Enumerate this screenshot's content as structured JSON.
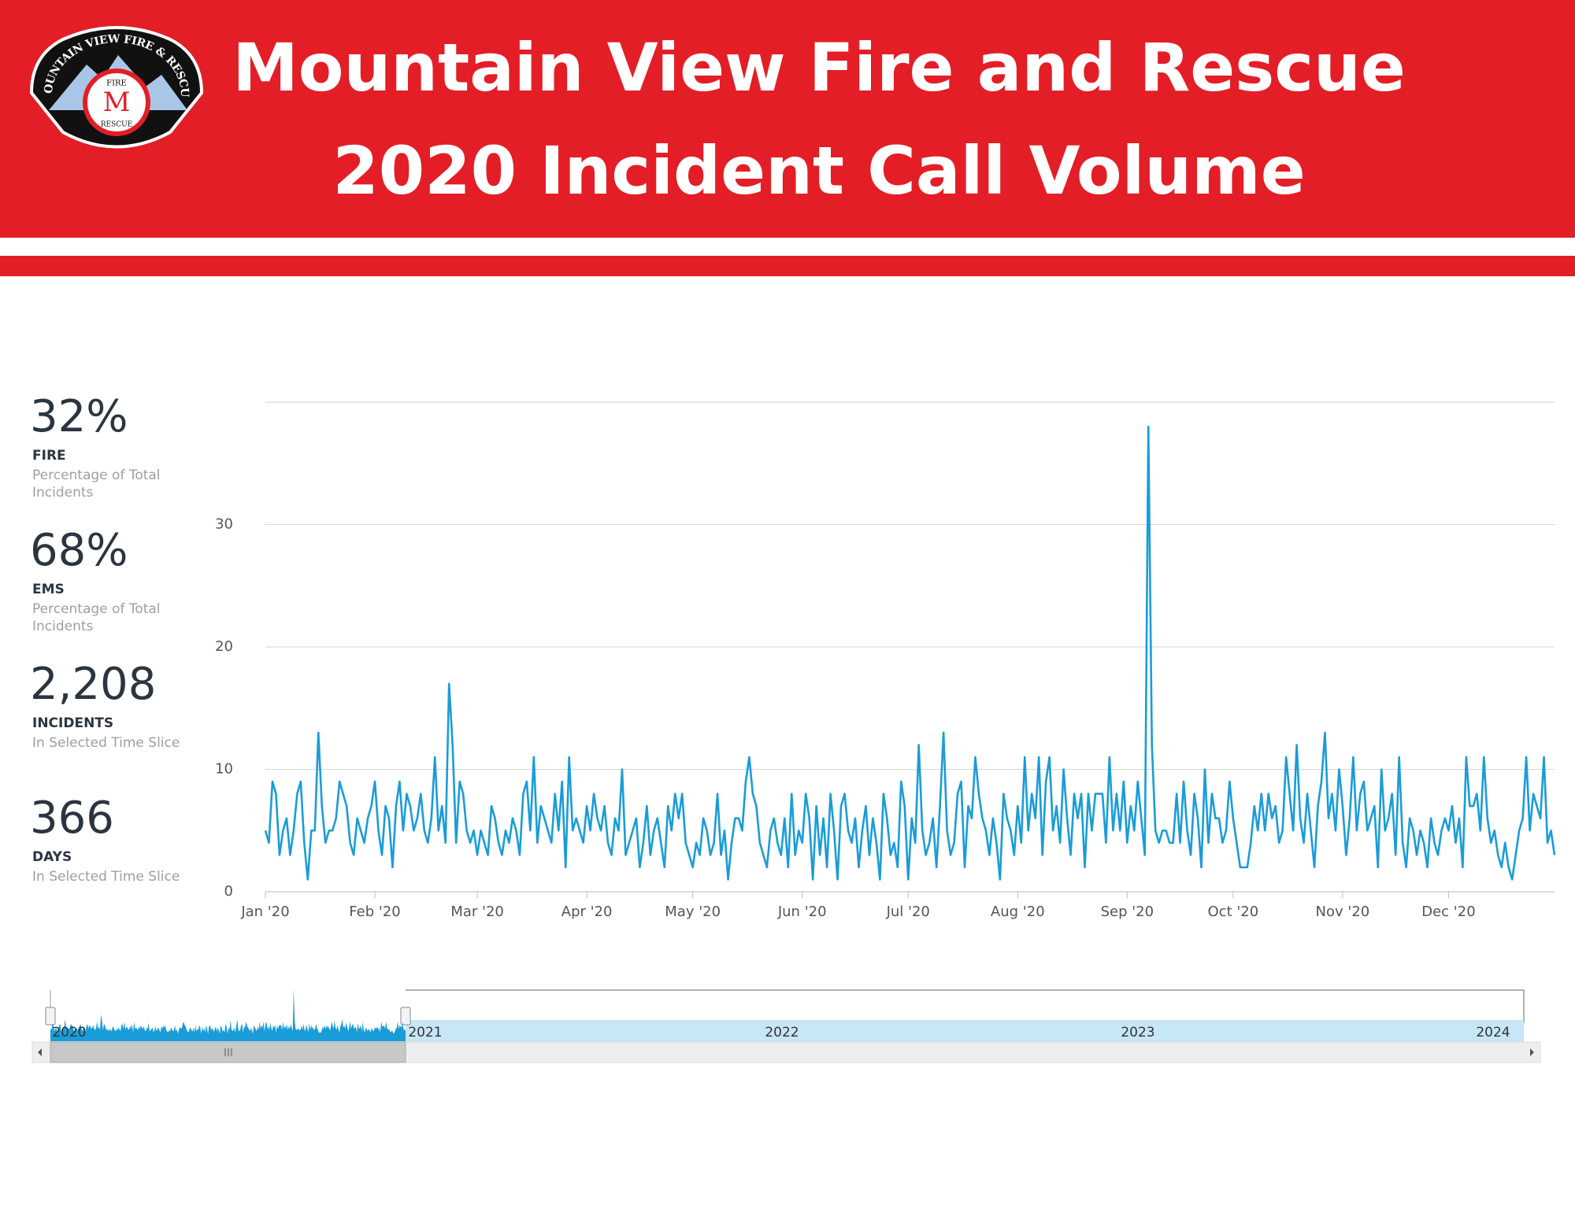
{
  "header": {
    "title_lines": [
      "Mountain View Fire and Rescue",
      "2020 Incident Call Volume"
    ]
  },
  "logo": {
    "ring_text": "MOUNTAIN VIEW FIRE & RESCUE",
    "top_text": "FIRE",
    "letter": "M",
    "bottom_text": "RESCUE"
  },
  "stats": [
    {
      "value": "32%",
      "label": "FIRE",
      "desc": [
        "Percentage of Total",
        "Incidents"
      ]
    },
    {
      "value": "68%",
      "label": "EMS",
      "desc": [
        "Percentage of Total",
        "Incidents"
      ]
    },
    {
      "value": "2,208",
      "label": "INCIDENTS",
      "desc": [
        "In Selected Time Slice"
      ]
    },
    {
      "value": "366",
      "label": "DAYS",
      "desc": [
        "In Selected Time Slice"
      ]
    }
  ],
  "chart_data": {
    "type": "line",
    "color": "#1a9cd8",
    "grid": true,
    "ylim": [
      0,
      40
    ],
    "yticks": [
      0,
      10,
      20,
      30
    ],
    "categories": [
      "Jan '20",
      null,
      null,
      null,
      null,
      null,
      null,
      null,
      null,
      null,
      null,
      null,
      null,
      null,
      null,
      null,
      null,
      null,
      null,
      null,
      null,
      null,
      null,
      null,
      null,
      null,
      null,
      null,
      null,
      null,
      null,
      "Feb '20",
      null,
      null,
      null,
      null,
      null,
      null,
      null,
      null,
      null,
      null,
      null,
      null,
      null,
      null,
      null,
      null,
      null,
      null,
      null,
      null,
      null,
      null,
      null,
      null,
      null,
      null,
      null,
      null,
      "Mar '20",
      null,
      null,
      null,
      null,
      null,
      null,
      null,
      null,
      null,
      null,
      null,
      null,
      null,
      null,
      null,
      null,
      null,
      null,
      null,
      null,
      null,
      null,
      null,
      null,
      null,
      null,
      null,
      null,
      null,
      null,
      "Apr '20",
      null,
      null,
      null,
      null,
      null,
      null,
      null,
      null,
      null,
      null,
      null,
      null,
      null,
      null,
      null,
      null,
      null,
      null,
      null,
      null,
      null,
      null,
      null,
      null,
      null,
      null,
      null,
      null,
      null,
      "May '20",
      null,
      null,
      null,
      null,
      null,
      null,
      null,
      null,
      null,
      null,
      null,
      null,
      null,
      null,
      null,
      null,
      null,
      null,
      null,
      null,
      null,
      null,
      null,
      null,
      null,
      null,
      null,
      null,
      null,
      null,
      "Jun '20",
      null,
      null,
      null,
      null,
      null,
      null,
      null,
      null,
      null,
      null,
      null,
      null,
      null,
      null,
      null,
      null,
      null,
      null,
      null,
      null,
      null,
      null,
      null,
      null,
      null,
      null,
      null,
      null,
      null,
      "Jul '20",
      null,
      null,
      null,
      null,
      null,
      null,
      null,
      null,
      null,
      null,
      null,
      null,
      null,
      null,
      null,
      null,
      null,
      null,
      null,
      null,
      null,
      null,
      null,
      null,
      null,
      null,
      null,
      null,
      null,
      null,
      "Aug '20",
      null,
      null,
      null,
      null,
      null,
      null,
      null,
      null,
      null,
      null,
      null,
      null,
      null,
      null,
      null,
      null,
      null,
      null,
      null,
      null,
      null,
      null,
      null,
      null,
      null,
      null,
      null,
      null,
      null,
      null,
      "Sep '20",
      null,
      null,
      null,
      null,
      null,
      null,
      null,
      null,
      null,
      null,
      null,
      null,
      null,
      null,
      null,
      null,
      null,
      null,
      null,
      null,
      null,
      null,
      null,
      null,
      null,
      null,
      null,
      null,
      null,
      "Oct '20",
      null,
      null,
      null,
      null,
      null,
      null,
      null,
      null,
      null,
      null,
      null,
      null,
      null,
      null,
      null,
      null,
      null,
      null,
      null,
      null,
      null,
      null,
      null,
      null,
      null,
      null,
      null,
      null,
      null,
      null,
      "Nov '20",
      null,
      null,
      null,
      null,
      null,
      null,
      null,
      null,
      null,
      null,
      null,
      null,
      null,
      null,
      null,
      null,
      null,
      null,
      null,
      null,
      null,
      null,
      null,
      null,
      null,
      null,
      null,
      null,
      null,
      "Dec '20",
      null,
      null,
      null,
      null,
      null,
      null,
      null,
      null,
      null,
      null,
      null,
      null,
      null,
      null,
      null,
      null,
      null,
      null,
      null,
      null,
      null,
      null,
      null,
      null,
      null,
      null,
      null,
      null,
      null,
      null
    ],
    "values": [
      5,
      4,
      9,
      8,
      3,
      5,
      6,
      3,
      5,
      8,
      9,
      4,
      1,
      5,
      5,
      13,
      7,
      4,
      5,
      5,
      6,
      9,
      8,
      7,
      4,
      3,
      6,
      5,
      4,
      6,
      7,
      9,
      5,
      3,
      7,
      6,
      2,
      7,
      9,
      5,
      8,
      7,
      5,
      6,
      8,
      5,
      4,
      6,
      11,
      5,
      7,
      4,
      17,
      12,
      4,
      9,
      8,
      5,
      4,
      5,
      3,
      5,
      4,
      3,
      7,
      6,
      4,
      3,
      5,
      4,
      6,
      5,
      3,
      8,
      9,
      5,
      11,
      4,
      7,
      6,
      5,
      4,
      8,
      5,
      9,
      2,
      11,
      5,
      6,
      5,
      4,
      7,
      5,
      8,
      6,
      5,
      7,
      4,
      3,
      6,
      5,
      10,
      3,
      4,
      5,
      6,
      2,
      4,
      7,
      3,
      5,
      6,
      4,
      2,
      7,
      5,
      8,
      6,
      8,
      4,
      3,
      2,
      4,
      3,
      6,
      5,
      3,
      4,
      8,
      3,
      5,
      1,
      4,
      6,
      6,
      5,
      9,
      11,
      8,
      7,
      4,
      3,
      2,
      5,
      6,
      4,
      3,
      6,
      2,
      8,
      3,
      5,
      4,
      8,
      6,
      1,
      7,
      3,
      6,
      2,
      8,
      5,
      1,
      7,
      8,
      5,
      4,
      6,
      2,
      5,
      7,
      3,
      6,
      4,
      1,
      8,
      6,
      3,
      4,
      2,
      9,
      7,
      1,
      6,
      4,
      12,
      5,
      3,
      4,
      6,
      2,
      7,
      13,
      5,
      3,
      4,
      8,
      9,
      2,
      7,
      6,
      11,
      8,
      6,
      5,
      3,
      6,
      4,
      1,
      8,
      6,
      5,
      3,
      7,
      4,
      11,
      5,
      8,
      6,
      11,
      3,
      9,
      11,
      5,
      7,
      4,
      10,
      6,
      3,
      8,
      6,
      8,
      2,
      8,
      5,
      8,
      8,
      8,
      4,
      11,
      5,
      8,
      5,
      9,
      4,
      7,
      5,
      9,
      6,
      3,
      38,
      12,
      5,
      4,
      5,
      5,
      4,
      4,
      8,
      4,
      9,
      5,
      3,
      8,
      6,
      2,
      10,
      4,
      8,
      6,
      6,
      4,
      5,
      9,
      6,
      4,
      2,
      2,
      2,
      4,
      7,
      5,
      8,
      5,
      8,
      6,
      7,
      4,
      5,
      11,
      8,
      5,
      12,
      6,
      4,
      8,
      5,
      2,
      7,
      9,
      13,
      6,
      8,
      5,
      10,
      7,
      3,
      6,
      11,
      5,
      8,
      9,
      5,
      6,
      7,
      2,
      10,
      5,
      6,
      8,
      3,
      11,
      4,
      2,
      6,
      5,
      3,
      5,
      4,
      2,
      6,
      4,
      3,
      5,
      6,
      5,
      7,
      4,
      6,
      2,
      11,
      7,
      7,
      8,
      5,
      11,
      6,
      4,
      5,
      3,
      2,
      4,
      2,
      1,
      3,
      5,
      6,
      11,
      5,
      8,
      7,
      6,
      11,
      4,
      5,
      3
    ]
  },
  "navigator": {
    "years": [
      "2020",
      "2021",
      "2022",
      "2023",
      "2024"
    ]
  }
}
